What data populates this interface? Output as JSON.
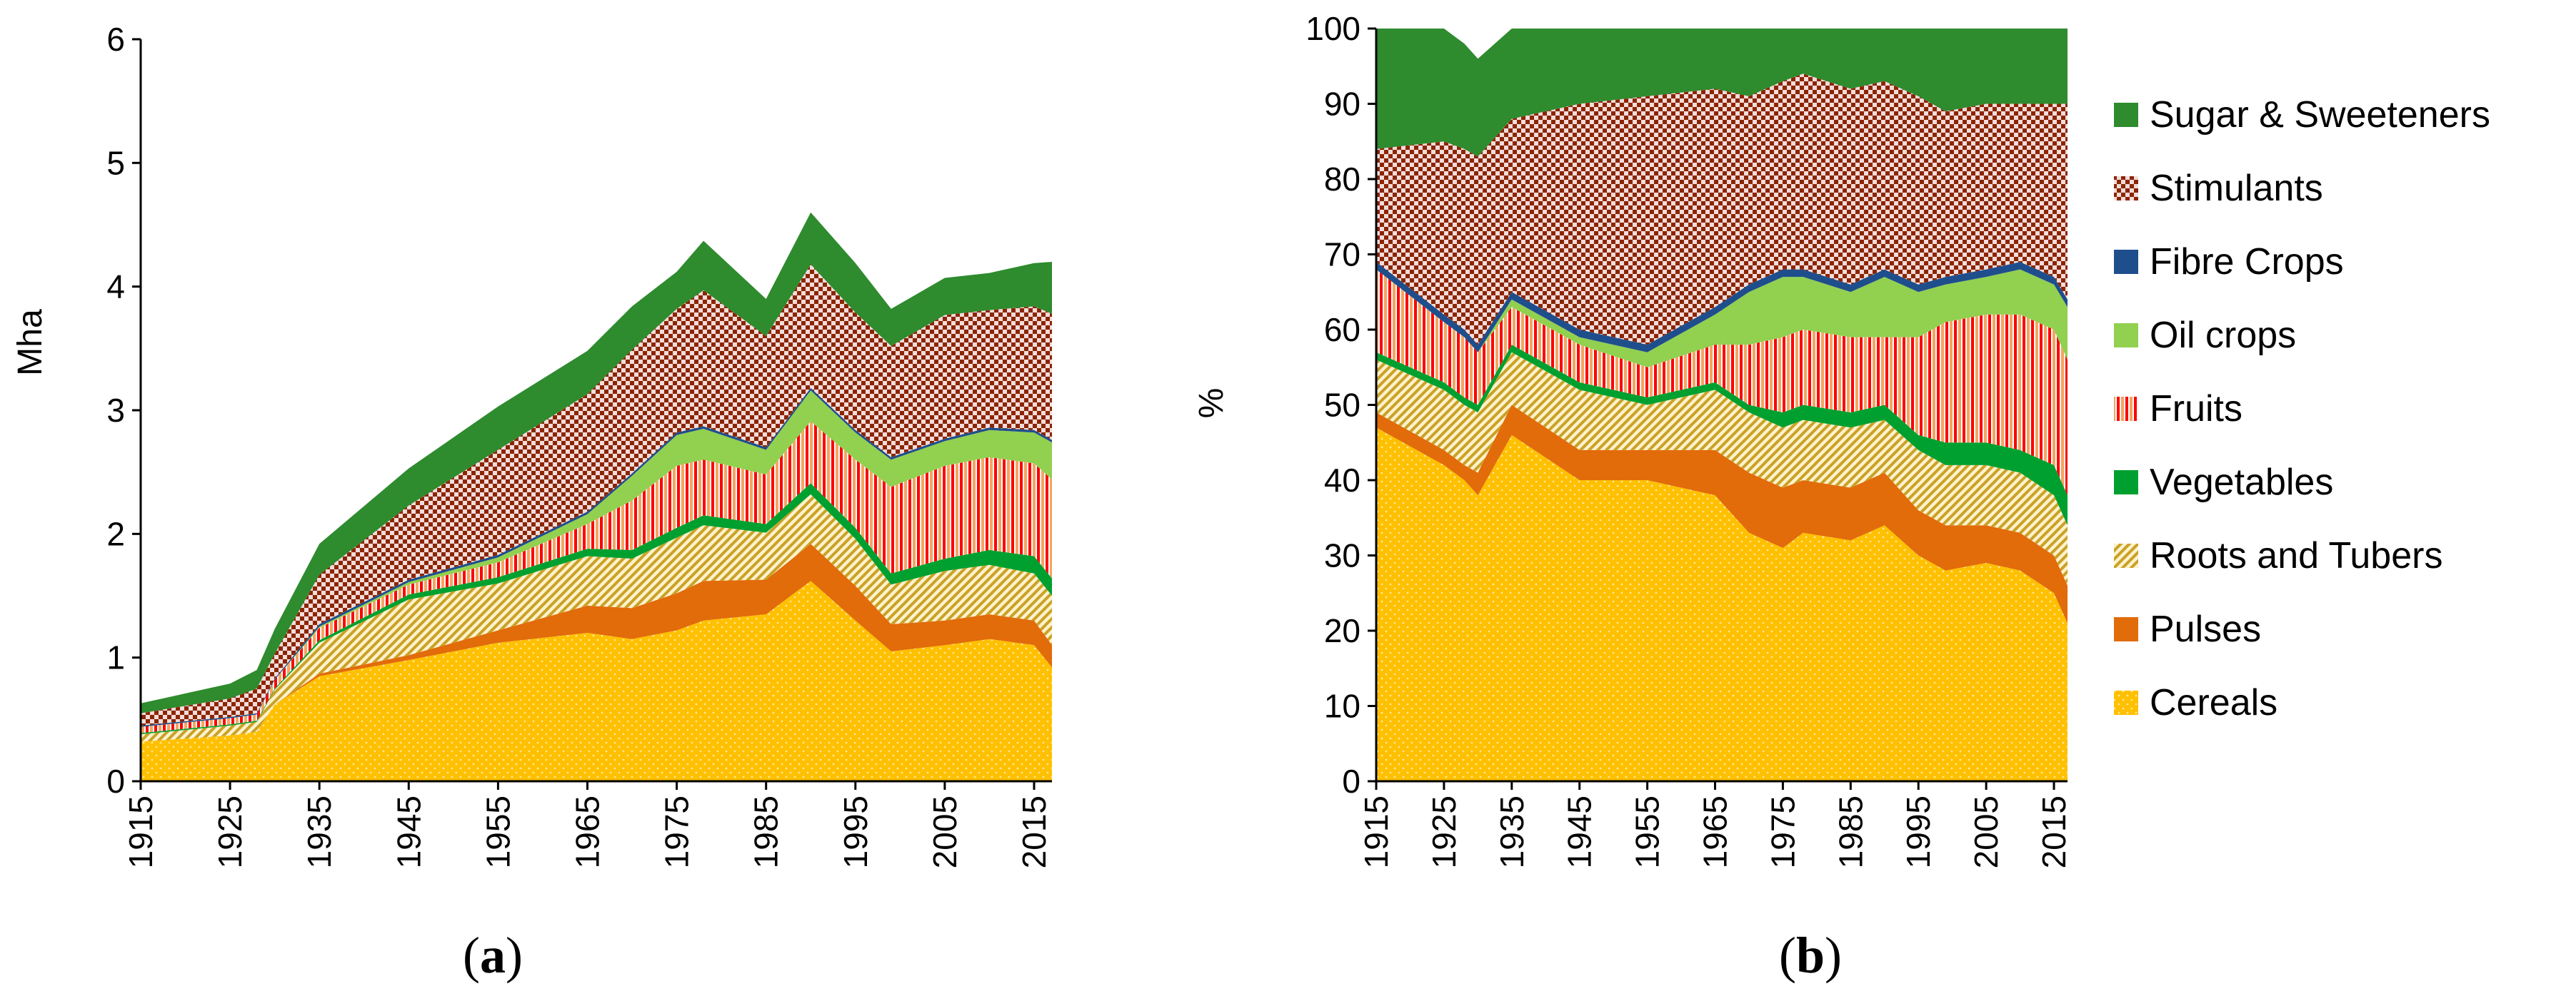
{
  "figure": {
    "panel_a_label": "(a)",
    "panel_b_label": "(b)",
    "panel_a_letter": "a",
    "panel_b_letter": "b"
  },
  "chart_data": [
    {
      "id": "a",
      "type": "area",
      "stacked": true,
      "title": "",
      "xlabel": "",
      "ylabel": "Mha",
      "ylim": [
        0,
        6
      ],
      "yticks": [
        "0",
        "1",
        "2",
        "3",
        "4",
        "5",
        "6"
      ],
      "xticks": [
        "1915",
        "1925",
        "1935",
        "1945",
        "1955",
        "1965",
        "1975",
        "1985",
        "1995",
        "2005",
        "2015"
      ],
      "xlim": [
        1915,
        2017
      ],
      "x": [
        1915,
        1925,
        1928,
        1930,
        1935,
        1945,
        1955,
        1965,
        1970,
        1975,
        1978,
        1985,
        1990,
        1995,
        1999,
        2005,
        2010,
        2015,
        2017
      ],
      "series": [
        {
          "name": "Cereals",
          "color": "#FFC000",
          "values": [
            0.32,
            0.37,
            0.4,
            0.62,
            0.85,
            0.98,
            1.12,
            1.2,
            1.15,
            1.22,
            1.3,
            1.35,
            1.62,
            1.3,
            1.05,
            1.1,
            1.15,
            1.1,
            0.92
          ]
        },
        {
          "name": "Pulses",
          "color": "#E26B0A",
          "values": [
            0.0,
            0.0,
            0.0,
            0.0,
            0.02,
            0.04,
            0.1,
            0.22,
            0.25,
            0.3,
            0.32,
            0.28,
            0.3,
            0.28,
            0.22,
            0.2,
            0.2,
            0.2,
            0.18
          ]
        },
        {
          "name": "Roots and Tubers",
          "color": "#C9A227",
          "values": [
            0.06,
            0.08,
            0.08,
            0.12,
            0.25,
            0.45,
            0.38,
            0.4,
            0.4,
            0.45,
            0.45,
            0.38,
            0.4,
            0.38,
            0.32,
            0.4,
            0.4,
            0.38,
            0.4
          ]
        },
        {
          "name": "Vegetables",
          "color": "#00A030",
          "values": [
            0.01,
            0.01,
            0.01,
            0.01,
            0.02,
            0.04,
            0.05,
            0.06,
            0.07,
            0.08,
            0.08,
            0.07,
            0.09,
            0.09,
            0.09,
            0.1,
            0.12,
            0.14,
            0.14
          ]
        },
        {
          "name": "Fruits",
          "color": "#FF0000",
          "values": [
            0.05,
            0.05,
            0.05,
            0.07,
            0.1,
            0.08,
            0.12,
            0.2,
            0.4,
            0.5,
            0.45,
            0.4,
            0.5,
            0.55,
            0.7,
            0.75,
            0.75,
            0.75,
            0.8
          ]
        },
        {
          "name": "Oil crops",
          "color": "#92D050",
          "values": [
            0.0,
            0.0,
            0.0,
            0.0,
            0.01,
            0.02,
            0.04,
            0.08,
            0.2,
            0.25,
            0.25,
            0.2,
            0.25,
            0.22,
            0.22,
            0.2,
            0.22,
            0.25,
            0.3
          ]
        },
        {
          "name": "Fibre Crops",
          "color": "#1F4E8C",
          "values": [
            0.01,
            0.01,
            0.01,
            0.01,
            0.02,
            0.02,
            0.02,
            0.02,
            0.02,
            0.02,
            0.02,
            0.02,
            0.02,
            0.02,
            0.02,
            0.02,
            0.02,
            0.02,
            0.02
          ]
        },
        {
          "name": "Stimulants",
          "color": "#8B2500",
          "values": [
            0.1,
            0.15,
            0.2,
            0.2,
            0.4,
            0.6,
            0.85,
            0.95,
            1.0,
            1.0,
            1.1,
            0.9,
            1.0,
            0.95,
            0.9,
            1.0,
            0.95,
            1.0,
            1.02
          ]
        },
        {
          "name": "Sugar & Sweeteners",
          "color": "#2E8B2E",
          "values": [
            0.08,
            0.12,
            0.15,
            0.2,
            0.25,
            0.3,
            0.35,
            0.35,
            0.35,
            0.3,
            0.4,
            0.3,
            0.42,
            0.4,
            0.3,
            0.3,
            0.3,
            0.35,
            0.42
          ]
        }
      ]
    },
    {
      "id": "b",
      "type": "area",
      "stacked": true,
      "title": "",
      "xlabel": "",
      "ylabel": "%",
      "ylim": [
        0,
        100
      ],
      "yticks": [
        "0",
        "10",
        "20",
        "30",
        "40",
        "50",
        "60",
        "70",
        "80",
        "90",
        "100"
      ],
      "xticks": [
        "1915",
        "1925",
        "1935",
        "1945",
        "1955",
        "1965",
        "1975",
        "1985",
        "1995",
        "2005",
        "2015"
      ],
      "xlim": [
        1915,
        2017
      ],
      "legend_position": "right",
      "x": [
        1915,
        1925,
        1928,
        1930,
        1935,
        1945,
        1955,
        1965,
        1970,
        1975,
        1978,
        1985,
        1990,
        1995,
        1999,
        2005,
        2010,
        2015,
        2017
      ],
      "series": [
        {
          "name": "Cereals",
          "color": "#FFC000",
          "values": [
            47,
            42,
            40,
            38,
            46,
            40,
            40,
            38,
            33,
            31,
            33,
            32,
            34,
            30,
            28,
            29,
            28,
            25,
            21
          ]
        },
        {
          "name": "Pulses",
          "color": "#E26B0A",
          "values": [
            2,
            2,
            2,
            3,
            4,
            4,
            4,
            6,
            8,
            8,
            7,
            7,
            7,
            6,
            6,
            5,
            5,
            5,
            5
          ]
        },
        {
          "name": "Roots and Tubers",
          "color": "#C9A227",
          "values": [
            7,
            8,
            8,
            8,
            7,
            8,
            6,
            8,
            8,
            8,
            8,
            8,
            7,
            8,
            8,
            8,
            8,
            8,
            8
          ]
        },
        {
          "name": "Vegetables",
          "color": "#00A030",
          "values": [
            1,
            1,
            1,
            1,
            1,
            1,
            1,
            1,
            1,
            2,
            2,
            2,
            2,
            2,
            3,
            3,
            3,
            4,
            4
          ]
        },
        {
          "name": "Fruits",
          "color": "#FF0000",
          "values": [
            11,
            8,
            8,
            7,
            5,
            5,
            4,
            5,
            8,
            10,
            10,
            10,
            9,
            13,
            16,
            17,
            18,
            18,
            18
          ]
        },
        {
          "name": "Oil crops",
          "color": "#92D050",
          "values": [
            0,
            0,
            0,
            0,
            1,
            1,
            2,
            4,
            7,
            8,
            7,
            6,
            8,
            6,
            5,
            5,
            6,
            6,
            7
          ]
        },
        {
          "name": "Fibre Crops",
          "color": "#1F4E8C",
          "values": [
            1,
            1,
            1,
            1,
            1,
            1,
            1,
            1,
            1,
            1,
            1,
            1,
            1,
            1,
            1,
            1,
            1,
            1,
            1
          ]
        },
        {
          "name": "Stimulants",
          "color": "#8B2500",
          "values": [
            15,
            23,
            24,
            25,
            23,
            30,
            33,
            29,
            25,
            25,
            26,
            26,
            25,
            25,
            22,
            22,
            21,
            23,
            26
          ]
        },
        {
          "name": "Sugar & Sweeteners",
          "color": "#2E8B2E",
          "values": [
            16,
            15,
            14,
            13,
            12,
            10,
            9,
            8,
            9,
            7,
            6,
            8,
            7,
            9,
            11,
            10,
            10,
            10,
            10
          ]
        }
      ]
    }
  ]
}
